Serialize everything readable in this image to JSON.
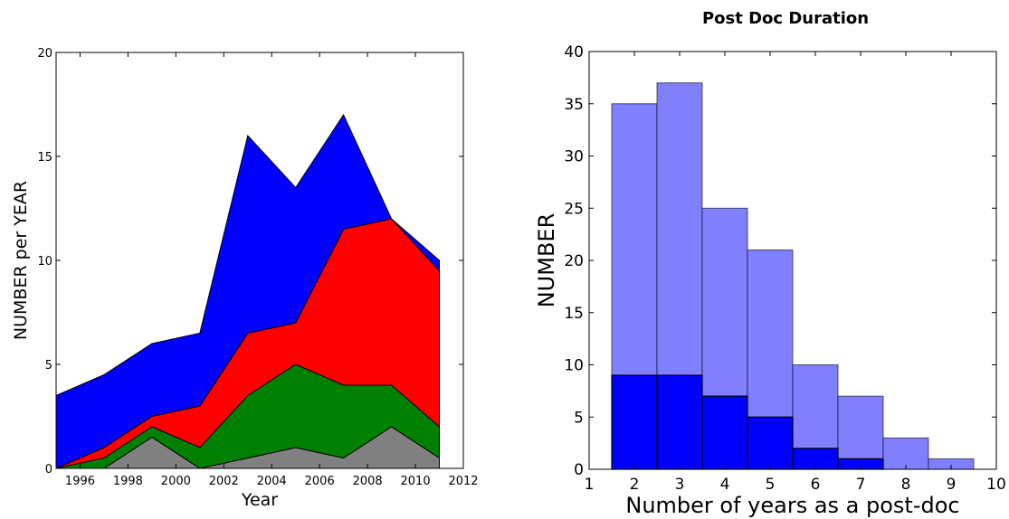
{
  "chart_data": [
    {
      "type": "area",
      "stacked": true,
      "title": "",
      "xlabel": "Year",
      "ylabel": "NUMBER per YEAR",
      "xlim": [
        1995,
        2012
      ],
      "ylim": [
        0,
        20
      ],
      "xticks": [
        "1996",
        "1998",
        "2000",
        "2002",
        "2004",
        "2006",
        "2008",
        "2010",
        "2012"
      ],
      "yticks": [
        "0",
        "5",
        "10",
        "15",
        "20"
      ],
      "x": [
        1995,
        1997,
        1999,
        2001,
        2003,
        2005,
        2007,
        2009,
        2011
      ],
      "series": [
        {
          "color": "#808080",
          "values": [
            0,
            0,
            1.5,
            0,
            0.5,
            1,
            0.5,
            2,
            0.5
          ]
        },
        {
          "color": "#008000",
          "values": [
            0,
            0.5,
            0.5,
            1,
            3,
            4,
            3.5,
            2,
            1.5
          ]
        },
        {
          "color": "#ff0000",
          "values": [
            0,
            0.5,
            0.5,
            2,
            3,
            2,
            7.5,
            8,
            7.5
          ]
        },
        {
          "color": "#0000ff",
          "values": [
            3.5,
            3.5,
            3.5,
            3.5,
            9.5,
            6.5,
            5.5,
            0,
            0.5
          ]
        }
      ]
    },
    {
      "type": "bar",
      "title": "Post Doc Duration",
      "xlabel": "Number of years as a post-doc",
      "ylabel": "NUMBER",
      "xlim": [
        1,
        10
      ],
      "ylim": [
        0,
        40
      ],
      "xticks": [
        "1",
        "2",
        "3",
        "4",
        "5",
        "6",
        "7",
        "8",
        "9",
        "10"
      ],
      "yticks": [
        "0",
        "5",
        "10",
        "15",
        "20",
        "25",
        "30",
        "35",
        "40"
      ],
      "categories": [
        2,
        3,
        4,
        5,
        6,
        7,
        8,
        9
      ],
      "series": [
        {
          "color": "#8080ff",
          "values": [
            35,
            37,
            25,
            21,
            10,
            7,
            3,
            1
          ]
        },
        {
          "color": "#0000ff",
          "values": [
            9,
            9,
            7,
            5,
            2,
            1,
            0,
            0
          ]
        }
      ]
    }
  ]
}
